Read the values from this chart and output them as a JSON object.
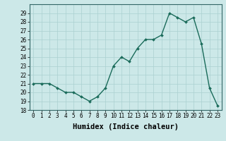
{
  "x": [
    0,
    1,
    2,
    3,
    4,
    5,
    6,
    7,
    8,
    9,
    10,
    11,
    12,
    13,
    14,
    15,
    16,
    17,
    18,
    19,
    20,
    21,
    22,
    23
  ],
  "y": [
    21.0,
    21.0,
    21.0,
    20.5,
    20.0,
    20.0,
    19.5,
    19.0,
    19.5,
    20.5,
    23.0,
    24.0,
    23.5,
    25.0,
    26.0,
    26.0,
    26.5,
    29.0,
    28.5,
    28.0,
    28.5,
    25.5,
    20.5,
    18.5
  ],
  "line_color": "#1a6b5a",
  "marker": "D",
  "marker_size": 2.0,
  "bg_color": "#cce8e8",
  "grid_color": "#aad0d0",
  "xlabel": "Humidex (Indice chaleur)",
  "xlim": [
    -0.5,
    23.5
  ],
  "ylim": [
    18,
    30
  ],
  "yticks": [
    18,
    19,
    20,
    21,
    22,
    23,
    24,
    25,
    26,
    27,
    28,
    29
  ],
  "xticks": [
    0,
    1,
    2,
    3,
    4,
    5,
    6,
    7,
    8,
    9,
    10,
    11,
    12,
    13,
    14,
    15,
    16,
    17,
    18,
    19,
    20,
    21,
    22,
    23
  ],
  "tick_label_fontsize": 5.5,
  "xlabel_fontsize": 7.5,
  "line_width": 1.0
}
